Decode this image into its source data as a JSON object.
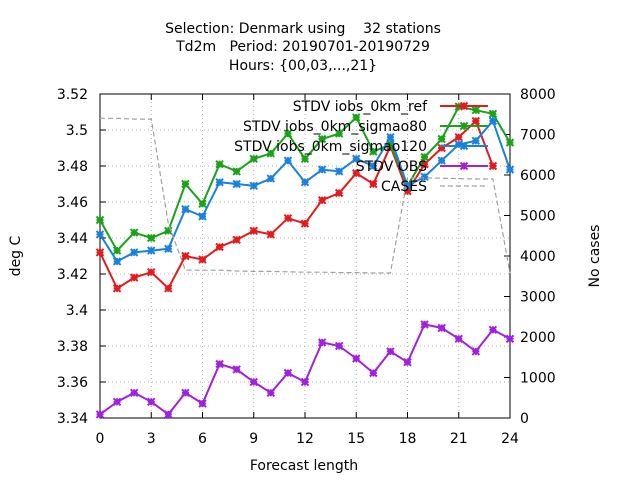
{
  "chart_data": {
    "type": "line",
    "title_lines": [
      "Selection: Denmark using    32 stations",
      "Td2m   Period: 20190701-20190729",
      "Hours: {00,03,...,21}"
    ],
    "xlabel": "Forecast length",
    "ylabel": "deg C",
    "y2label": "No cases",
    "xlim": [
      0,
      24
    ],
    "ylim": [
      3.34,
      3.52
    ],
    "y2lim": [
      0,
      8000
    ],
    "xticks": [
      0,
      3,
      6,
      9,
      12,
      15,
      18,
      21,
      24
    ],
    "yticks": [
      3.34,
      3.36,
      3.38,
      3.4,
      3.42,
      3.44,
      3.46,
      3.48,
      3.5,
      3.52
    ],
    "yticks_labels": [
      "3.34",
      "3.36",
      "3.38",
      "3.4",
      "3.42",
      "3.44",
      "3.46",
      "3.48",
      "3.5",
      "3.52"
    ],
    "y2ticks": [
      0,
      1000,
      2000,
      3000,
      4000,
      5000,
      6000,
      7000,
      8000
    ],
    "grid": true,
    "legend_position": "top-right",
    "x": [
      0,
      1,
      2,
      3,
      4,
      5,
      6,
      7,
      8,
      9,
      10,
      11,
      12,
      13,
      14,
      15,
      16,
      17,
      18,
      19,
      20,
      21,
      22,
      23,
      24
    ],
    "series": [
      {
        "name": "STDV iobs_0km_ref",
        "color": "#e41a1c",
        "axis": "y",
        "values": [
          3.432,
          3.412,
          3.418,
          3.421,
          3.412,
          3.43,
          3.428,
          3.435,
          3.439,
          3.444,
          3.442,
          3.451,
          3.448,
          3.461,
          3.465,
          3.476,
          3.47,
          3.491,
          3.466,
          3.481,
          3.49,
          3.496,
          3.505,
          3.48,
          null
        ]
      },
      {
        "name": "STDV iobs_0km_sigmao80",
        "color": "#1aa31a",
        "axis": "y",
        "values": [
          3.45,
          3.433,
          3.443,
          3.44,
          3.444,
          3.47,
          3.459,
          3.481,
          3.477,
          3.484,
          3.487,
          3.498,
          3.484,
          3.495,
          3.498,
          3.507,
          3.488,
          3.492,
          3.469,
          3.485,
          3.495,
          3.513,
          3.511,
          3.509,
          3.493
        ]
      },
      {
        "name": "STDV iobs_0km_sigmao120",
        "color": "#1a82dc",
        "axis": "y",
        "values": [
          3.442,
          3.427,
          3.432,
          3.433,
          3.434,
          3.456,
          3.452,
          3.471,
          3.47,
          3.469,
          3.473,
          3.483,
          3.471,
          3.478,
          3.477,
          3.484,
          3.48,
          3.496,
          3.469,
          3.474,
          3.483,
          3.492,
          3.494,
          3.505,
          3.478
        ]
      },
      {
        "name": "STDV OBS",
        "color": "#a020e0",
        "axis": "y",
        "values": [
          3.342,
          3.349,
          3.354,
          3.349,
          3.342,
          3.354,
          3.348,
          3.37,
          3.367,
          3.36,
          3.354,
          3.365,
          3.36,
          3.382,
          3.38,
          3.373,
          3.365,
          3.377,
          3.371,
          3.392,
          3.39,
          3.384,
          3.377,
          3.389,
          3.384
        ]
      },
      {
        "name": "CASES",
        "color": "#a0a0a0",
        "axis": "y2",
        "dashed": true,
        "values": [
          7400,
          7400,
          7380,
          7380,
          4800,
          3650,
          3650,
          3650,
          3630,
          3620,
          3620,
          3610,
          3600,
          3600,
          3590,
          3590,
          3580,
          3580,
          5930,
          5930,
          5920,
          5910,
          5900,
          5900,
          3580
        ]
      }
    ]
  }
}
